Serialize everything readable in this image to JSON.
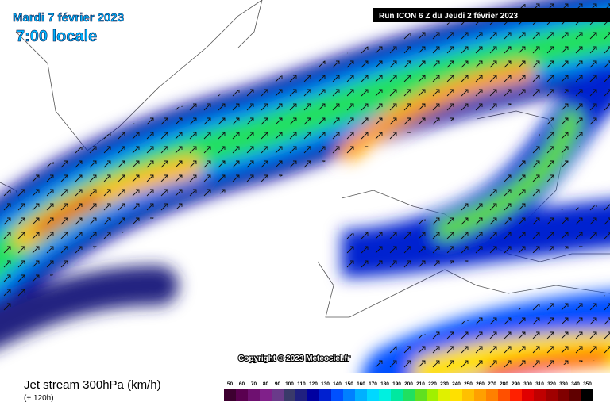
{
  "header": {
    "date": "Mardi 7 février 2023",
    "time": "7:00 locale",
    "run": "Run ICON 6 Z du Jeudi 2 février 2023"
  },
  "copyright": "Copyright © 2023 Meteociel.fr",
  "legend": {
    "title": "Jet stream 300hPa (km/h)",
    "lead": "(+ 120h)",
    "labels": [
      "50",
      "60",
      "70",
      "80",
      "90",
      "100",
      "110",
      "120",
      "130",
      "140",
      "150",
      "160",
      "170",
      "180",
      "190",
      "200",
      "210",
      "220",
      "230",
      "240",
      "250",
      "260",
      "270",
      "280",
      "290",
      "300",
      "310",
      "320",
      "330",
      "340",
      "350"
    ],
    "colors": [
      "#3d0030",
      "#5a0050",
      "#6e1070",
      "#80208a",
      "#6a3a8a",
      "#3a3a6a",
      "#202080",
      "#0000a0",
      "#0020d0",
      "#0050ff",
      "#0080ff",
      "#00b0ff",
      "#00d8ff",
      "#00f0e0",
      "#00e8a0",
      "#20e060",
      "#60e020",
      "#a0f000",
      "#e0f000",
      "#ffe000",
      "#ffc000",
      "#ffa000",
      "#ff8000",
      "#ff5000",
      "#ff2000",
      "#e00000",
      "#c00000",
      "#a00000",
      "#800000",
      "#600000",
      "#000000"
    ]
  }
}
